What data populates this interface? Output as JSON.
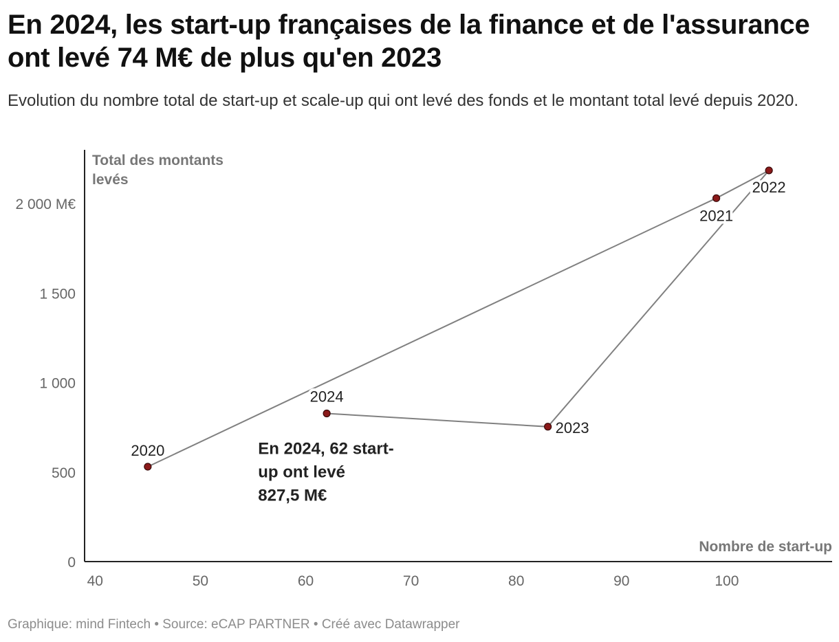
{
  "header": {
    "title": "En 2024, les start-up françaises de la finance et de l'assurance ont levé 74 M€ de plus qu'en 2023",
    "subtitle": "Evolution du nombre total de start-up et scale-up qui ont levé des fonds et le montant total levé depuis 2020."
  },
  "footer": {
    "credit": "Graphique: mind Fintech • Source: eCAP PARTNER • Créé avec Datawrapper"
  },
  "chart_data": {
    "type": "scatter",
    "connected": true,
    "title": "En 2024, les start-up françaises de la finance et de l'assurance ont levé 74 M€ de plus qu'en 2023",
    "xlabel": "Nombre de start-up",
    "ylabel": "Total des montants levés",
    "ylabel_lines": [
      "Total des montants",
      "levés"
    ],
    "xlim": [
      39,
      110
    ],
    "ylim": [
      0,
      2300
    ],
    "x_ticks": [
      40,
      50,
      60,
      70,
      80,
      90,
      100
    ],
    "x_tick_labels": [
      "40",
      "50",
      "60",
      "70",
      "80",
      "90",
      "100"
    ],
    "y_ticks": [
      0,
      500,
      1000,
      1500,
      2000
    ],
    "y_tick_labels": [
      "0",
      "500",
      "1 000",
      "1 500",
      "2 000 M€"
    ],
    "grid": false,
    "point_color": "#8b1a1a",
    "line_color": "#808080",
    "points": [
      {
        "label": "2020",
        "x": 45,
        "y": 530
      },
      {
        "label": "2021",
        "x": 99,
        "y": 2030
      },
      {
        "label": "2022",
        "x": 104,
        "y": 2185
      },
      {
        "label": "2023",
        "x": 83,
        "y": 753.5
      },
      {
        "label": "2024",
        "x": 62,
        "y": 827.5
      }
    ],
    "annotations": [
      {
        "lines": [
          "En 2024, 62 start-",
          "up ont levé",
          "827,5 M€"
        ],
        "x": 56,
        "y": 640
      }
    ]
  }
}
